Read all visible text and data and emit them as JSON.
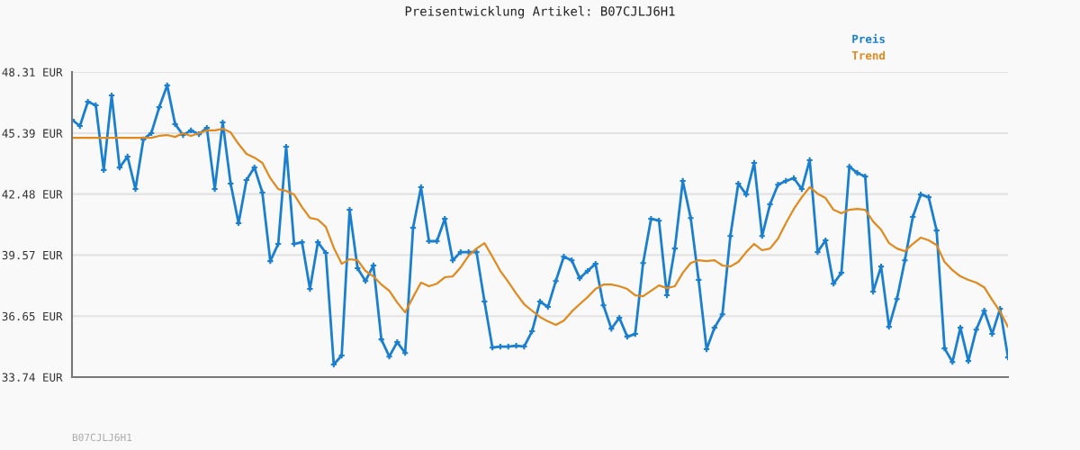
{
  "chart_data": {
    "type": "line",
    "title": "Preisentwicklung Artikel: B07CJLJ6H1",
    "categories": [
      null,
      null,
      null,
      null,
      null,
      null,
      null,
      null,
      null,
      null,
      null,
      null,
      null,
      null,
      null,
      null,
      null,
      null,
      null,
      null,
      null,
      null,
      null,
      null,
      null,
      null,
      null,
      null,
      null,
      null,
      null,
      null,
      null,
      null,
      null,
      null,
      null,
      null,
      null,
      null,
      null,
      null,
      null,
      null,
      null,
      null,
      null,
      null,
      null,
      null,
      null,
      null,
      null,
      null,
      null,
      null,
      null,
      null,
      null,
      null,
      null,
      null,
      null,
      null,
      null,
      null,
      null,
      null,
      null,
      null,
      null,
      null,
      null,
      null,
      null,
      null,
      null,
      null,
      null,
      null,
      null,
      null,
      null,
      null,
      null,
      null,
      null,
      null,
      null,
      null,
      null,
      null,
      null,
      null,
      null,
      null,
      null,
      null,
      null,
      null,
      null,
      null,
      null,
      null,
      null,
      null,
      null,
      null,
      null,
      null,
      null,
      null,
      null,
      null,
      null,
      null,
      null,
      null,
      null
    ],
    "series": [
      {
        "name": "Preis",
        "color": "#1a7fcf",
        "marker": "cross",
        "values": [
          46.03,
          45.73,
          46.89,
          46.72,
          43.63,
          47.19,
          43.75,
          44.27,
          42.72,
          45.09,
          45.39,
          46.63,
          47.67,
          45.82,
          45.3,
          45.52,
          45.34,
          45.64,
          42.72,
          45.9,
          42.98,
          41.09,
          43.15,
          43.75,
          42.55,
          39.28,
          40.1,
          44.74,
          40.1,
          40.18,
          37.95,
          40.18,
          39.67,
          34.34,
          34.77,
          41.73,
          38.94,
          38.33,
          39.07,
          35.54,
          34.72,
          35.41,
          34.89,
          40.87,
          42.81,
          40.23,
          40.23,
          41.3,
          39.32,
          39.71,
          39.71,
          39.71,
          37.35,
          35.15,
          35.2,
          35.2,
          35.24,
          35.2,
          35.93,
          37.35,
          37.09,
          38.33,
          39.49,
          39.32,
          38.46,
          38.81,
          39.15,
          37.17,
          36.05,
          36.57,
          35.67,
          35.8,
          39.19,
          41.3,
          41.21,
          37.65,
          39.88,
          43.11,
          41.34,
          38.38,
          35.07,
          36.1,
          36.74,
          40.48,
          42.98,
          42.46,
          43.97,
          40.48,
          41.99,
          42.93,
          43.11,
          43.24,
          42.72,
          44.1,
          39.71,
          40.27,
          38.2,
          38.72,
          43.79,
          43.49,
          43.32,
          37.82,
          39.02,
          36.14,
          37.47,
          39.32,
          41.39,
          42.46,
          42.33,
          40.74,
          35.11,
          34.46,
          36.1,
          34.51,
          36.01,
          36.91,
          35.8,
          37.0,
          34.68
        ]
      },
      {
        "name": "Trend",
        "color": "#e08a1e",
        "marker": "none",
        "values": [
          45.17,
          45.17,
          45.17,
          45.17,
          45.17,
          45.17,
          45.17,
          45.17,
          45.17,
          45.17,
          45.17,
          45.26,
          45.3,
          45.21,
          45.39,
          45.26,
          45.39,
          45.52,
          45.52,
          45.6,
          45.43,
          44.87,
          44.4,
          44.22,
          43.97,
          43.24,
          42.72,
          42.63,
          42.46,
          41.86,
          41.34,
          41.26,
          40.91,
          39.92,
          39.15,
          39.37,
          39.32,
          38.81,
          38.55,
          38.16,
          37.86,
          37.3,
          36.83,
          37.56,
          38.25,
          38.08,
          38.2,
          38.51,
          38.55,
          38.98,
          39.54,
          39.88,
          40.14,
          39.49,
          38.81,
          38.29,
          37.73,
          37.22,
          36.91,
          36.61,
          36.4,
          36.23,
          36.44,
          36.87,
          37.22,
          37.56,
          37.95,
          38.16,
          38.16,
          38.08,
          37.95,
          37.65,
          37.6,
          37.86,
          38.12,
          37.99,
          38.08,
          38.72,
          39.19,
          39.32,
          39.28,
          39.32,
          39.07,
          39.02,
          39.24,
          39.71,
          40.1,
          39.8,
          39.88,
          40.35,
          41.09,
          41.77,
          42.33,
          42.81,
          42.5,
          42.29,
          41.73,
          41.56,
          41.73,
          41.77,
          41.73,
          41.17,
          40.78,
          40.14,
          39.88,
          39.75,
          40.1,
          40.4,
          40.27,
          40.05,
          39.24,
          38.85,
          38.55,
          38.38,
          38.25,
          38.03,
          37.43,
          36.87,
          36.14
        ]
      }
    ],
    "ylim": [
      33.74,
      48.31
    ],
    "yticks": [
      {
        "value": 33.74,
        "label": "33.74 EUR"
      },
      {
        "value": 36.65,
        "label": "36.65 EUR"
      },
      {
        "value": 39.57,
        "label": "39.57 EUR"
      },
      {
        "value": 42.48,
        "label": "42.48 EUR"
      },
      {
        "value": 45.39,
        "label": "45.39 EUR"
      },
      {
        "value": 48.31,
        "label": "48.31 EUR"
      }
    ],
    "grid": "y",
    "legend": "top right",
    "line_style": "solid",
    "annotations": [
      "B07CJLJ6H1"
    ]
  }
}
